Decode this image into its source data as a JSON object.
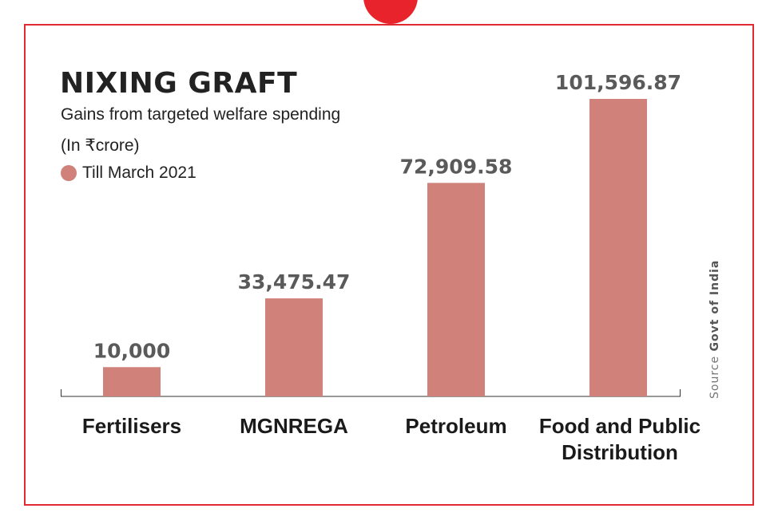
{
  "header": {
    "title": "NIXING GRAFT",
    "subtitle": "Gains from targeted welfare spending",
    "unit": "(In ₹crore)"
  },
  "legend": {
    "label": "Till March 2021",
    "color": "#d0827a"
  },
  "source": {
    "prefix": "Source",
    "name": "Govt of India"
  },
  "colors": {
    "accent": "#e12a2f",
    "bar": "#d0827a",
    "value_label": "#5a5a5a",
    "category_label": "#1a1a1a"
  },
  "chart_data": {
    "type": "bar",
    "categories": [
      "Fertilisers",
      "MGNREGA",
      "Petroleum",
      "Food and Public Distribution"
    ],
    "category_lines": [
      [
        "Fertilisers"
      ],
      [
        "MGNREGA"
      ],
      [
        "Petroleum"
      ],
      [
        "Food and Public",
        "Distribution"
      ]
    ],
    "series": [
      {
        "name": "Till March 2021",
        "values": [
          10000,
          33475.47,
          72909.58,
          101596.87
        ]
      }
    ],
    "value_labels": [
      "10,000",
      "33,475.47",
      "72,909.58",
      "101,596.87"
    ],
    "title": "NIXING GRAFT",
    "subtitle": "Gains from targeted welfare spending",
    "ylabel": "",
    "xlabel": "",
    "grid": false,
    "legend_position": "top-left"
  }
}
